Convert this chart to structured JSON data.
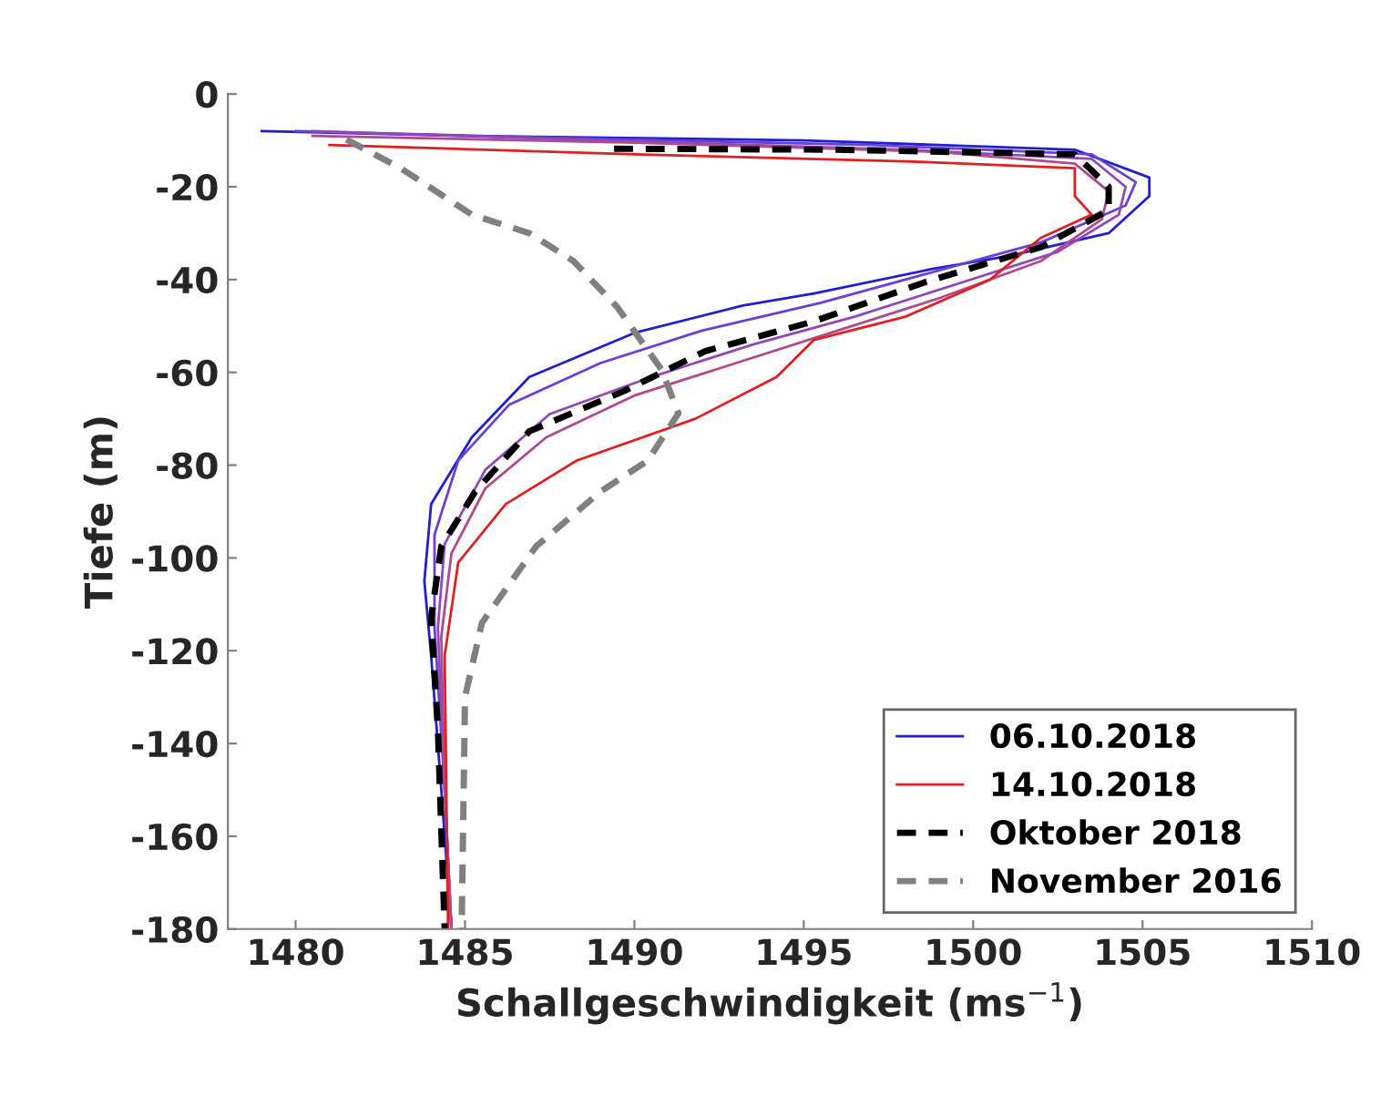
{
  "chart_data": {
    "type": "line",
    "xlabel": "Schallgeschwindigkeit (ms$^{−1}$)",
    "ylabel": "Tiefe (m)",
    "xlim": [
      1478,
      1510
    ],
    "ylim": [
      -180,
      0
    ],
    "xticks": [
      1480,
      1485,
      1490,
      1495,
      1500,
      1505,
      1510
    ],
    "yticks": [
      -180,
      -160,
      -140,
      -120,
      -100,
      -80,
      -60,
      -40,
      -20,
      0
    ],
    "grid": false,
    "legend": "bottom right",
    "marker": "none",
    "series": [
      {
        "name": "06.10.2018",
        "color": "#1f1fd0",
        "line_style": "solid",
        "x": [
          1479,
          1485,
          1495,
          1503,
          1505.2,
          1505.2,
          1504,
          1501,
          1498.8,
          1495.3,
          1493.2,
          1490,
          1486.9,
          1485.2,
          1484,
          1483.8,
          1484,
          1484.3,
          1484.6
        ],
        "values": [
          -8,
          -9,
          -10,
          -12,
          -18,
          -22,
          -30,
          -35,
          -37.7,
          -43,
          -45.6,
          -51.5,
          -61,
          -74,
          -88.4,
          -105,
          -121,
          -150,
          -180
        ]
      },
      {
        "color": "#6a3fd8",
        "line_style": "solid",
        "x": [
          1480,
          1488,
          1497,
          1503.5,
          1504.8,
          1504.5,
          1502,
          1499,
          1495.5,
          1492,
          1489,
          1486.3,
          1484.8,
          1484.1,
          1484.1,
          1484.4,
          1484.6
        ],
        "values": [
          -8,
          -9.5,
          -11,
          -13,
          -19,
          -24,
          -32,
          -38,
          -45,
          -51,
          -58,
          -67,
          -79,
          -95,
          -115,
          -150,
          -180
        ]
      },
      {
        "color": "#9048b8",
        "line_style": "solid",
        "x": [
          1480.5,
          1489,
          1498,
          1503.5,
          1504.5,
          1504.3,
          1502.5,
          1499.5,
          1496.5,
          1493.5,
          1490.5,
          1487.5,
          1485.6,
          1484.4,
          1484.2,
          1484.4,
          1484.6
        ],
        "values": [
          -8,
          -10,
          -12,
          -14,
          -20,
          -26,
          -34,
          -41,
          -48,
          -54,
          -61,
          -69,
          -81,
          -97,
          -115,
          -150,
          -180
        ]
      },
      {
        "color": "#b04a90",
        "line_style": "solid",
        "x": [
          1480.5,
          1490,
          1499,
          1503,
          1504,
          1503.8,
          1502,
          1499,
          1496,
          1493,
          1490,
          1487.4,
          1485.6,
          1484.6,
          1484.3,
          1484.4,
          1484.6
        ],
        "values": [
          -9,
          -10.5,
          -12.5,
          -15,
          -21,
          -27,
          -36,
          -44,
          -51,
          -58,
          -65,
          -74,
          -85,
          -99,
          -117,
          -150,
          -180
        ]
      },
      {
        "name": "14.10.2018",
        "color": "#e02020",
        "line_style": "solid",
        "x": [
          1481,
          1490,
          1498,
          1503,
          1503,
          1503.5,
          1502,
          1500.5,
          1498,
          1495.3,
          1494.2,
          1491.8,
          1488.3,
          1486.2,
          1484.8,
          1484.4,
          1484.5
        ],
        "values": [
          -11,
          -13,
          -14.5,
          -16,
          -22,
          -26,
          -31,
          -40,
          -48,
          -53,
          -61,
          -70,
          -79,
          -88.4,
          -101,
          -121,
          -180
        ]
      },
      {
        "name": "Oktober 2018",
        "color": "#000000",
        "line_style": "dashed",
        "x": [
          1489.4,
          1496,
          1503,
          1504,
          1504,
          1502,
          1498.6,
          1495.3,
          1492.1,
          1489.7,
          1486.9,
          1485.3,
          1484.3,
          1484,
          1484.2,
          1484.4
        ],
        "values": [
          -11.8,
          -12,
          -13,
          -20,
          -25,
          -33,
          -40.5,
          -49,
          -55.4,
          -64,
          -72.7,
          -85.7,
          -97.5,
          -113,
          -137,
          -180
        ]
      },
      {
        "name": "November 2016",
        "color": "#808080",
        "line_style": "dashed",
        "x": [
          1481.5,
          1483.1,
          1485.2,
          1486.9,
          1488.2,
          1489.5,
          1490.8,
          1491.3,
          1490.4,
          1489,
          1487.1,
          1485.5,
          1485,
          1484.9
        ],
        "values": [
          -9.8,
          -16,
          -26,
          -30,
          -36,
          -46,
          -59.4,
          -68.8,
          -79,
          -85.7,
          -97.5,
          -114,
          -130,
          -180
        ]
      }
    ]
  }
}
